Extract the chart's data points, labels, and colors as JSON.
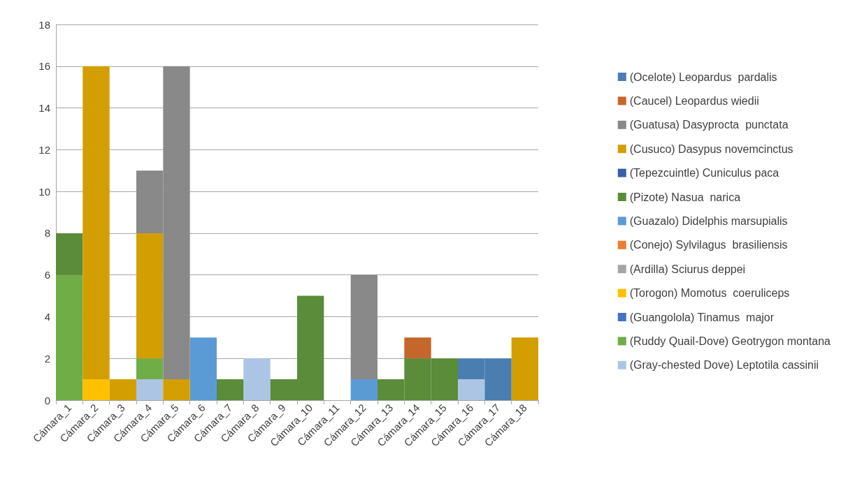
{
  "chart_data": {
    "type": "bar",
    "stacked": true,
    "grid": "y",
    "legend": "right",
    "categories": [
      "Cámara_1",
      "Cámara_2",
      "Cámara_3",
      "Cámara_4",
      "Cámara_5",
      "Cámara_6",
      "Cámara_7",
      "Cámara_8",
      "Cámara_9",
      "Cámara_10",
      "Cámara_11",
      "Cámara_12",
      "Cámara_13",
      "Cámara_14",
      "Cámara_15",
      "Cámara_16",
      "Cámara_17",
      "Cámara_18"
    ],
    "ylim": [
      0,
      18
    ],
    "yticks": [
      0,
      2,
      4,
      6,
      8,
      10,
      12,
      14,
      16,
      18
    ],
    "series": [
      {
        "name": "(Gray-chested Dove) Leptotila cassinii",
        "color": "#adc5e5",
        "values": [
          0,
          0,
          0,
          1,
          0,
          0,
          0,
          2,
          0,
          0,
          0,
          0,
          0,
          0,
          0,
          1,
          0,
          0
        ]
      },
      {
        "name": "(Ruddy Quail-Dove) Geotrygon montana",
        "color": "#70ad47",
        "values": [
          6,
          0,
          0,
          1,
          0,
          0,
          0,
          0,
          0,
          0,
          0,
          0,
          0,
          0,
          0,
          0,
          0,
          0
        ]
      },
      {
        "name": "(Guangolola) Tinamus  major",
        "color": "#4472c4",
        "values": [
          0,
          0,
          0,
          0,
          0,
          0,
          0,
          0,
          0,
          0,
          0,
          0,
          0,
          0,
          0,
          0,
          0,
          0
        ]
      },
      {
        "name": "(Torogon) Momotus  coeruliceps",
        "color": "#ffc000",
        "values": [
          0,
          1,
          0,
          0,
          0,
          0,
          0,
          0,
          0,
          0,
          0,
          0,
          0,
          0,
          0,
          0,
          0,
          0
        ]
      },
      {
        "name": "(Ardilla) Sciurus deppei",
        "color": "#a5a5a5",
        "values": [
          0,
          0,
          0,
          0,
          0,
          0,
          0,
          0,
          0,
          0,
          0,
          0,
          0,
          0,
          0,
          0,
          0,
          0
        ]
      },
      {
        "name": "(Conejo) Sylvilagus  brasiliensis",
        "color": "#ed7d31",
        "values": [
          0,
          0,
          0,
          0,
          0,
          0,
          0,
          0,
          0,
          0,
          0,
          0,
          0,
          0,
          0,
          0,
          0,
          0
        ]
      },
      {
        "name": "(Guazalo) Didelphis marsupialis",
        "color": "#5b9bd5",
        "values": [
          0,
          0,
          0,
          0,
          0,
          3,
          0,
          0,
          0,
          0,
          0,
          1,
          0,
          0,
          0,
          0,
          0,
          0
        ]
      },
      {
        "name": "(Pizote) Nasua  narica",
        "color": "#5a8c3a",
        "values": [
          2,
          0,
          0,
          0,
          0,
          0,
          1,
          0,
          1,
          5,
          0,
          0,
          1,
          2,
          2,
          0,
          0,
          0
        ]
      },
      {
        "name": "(Tepezcuintle) Cuniculus paca",
        "color": "#3a5fa4",
        "values": [
          0,
          0,
          0,
          0,
          0,
          0,
          0,
          0,
          0,
          0,
          0,
          0,
          0,
          0,
          0,
          0,
          0,
          0
        ]
      },
      {
        "name": "(Cusuco) Dasypus novemcinctus",
        "color": "#d39e00",
        "values": [
          0,
          15,
          1,
          6,
          1,
          0,
          0,
          0,
          0,
          0,
          0,
          0,
          0,
          0,
          0,
          0,
          0,
          3
        ]
      },
      {
        "name": "(Guatusa) Dasyprocta  punctata",
        "color": "#898989",
        "values": [
          0,
          0,
          0,
          3,
          15,
          0,
          0,
          0,
          0,
          0,
          0,
          5,
          0,
          0,
          0,
          0,
          0,
          0
        ]
      },
      {
        "name": "(Caucel) Leopardus wiedii",
        "color": "#c5662a",
        "values": [
          0,
          0,
          0,
          0,
          0,
          0,
          0,
          0,
          0,
          0,
          0,
          0,
          0,
          1,
          0,
          0,
          0,
          0
        ]
      },
      {
        "name": "(Ocelote) Leopardus  pardalis",
        "color": "#4a7eb0",
        "values": [
          0,
          0,
          0,
          0,
          0,
          0,
          0,
          0,
          0,
          0,
          0,
          0,
          0,
          0,
          0,
          1,
          2,
          0
        ]
      }
    ]
  }
}
